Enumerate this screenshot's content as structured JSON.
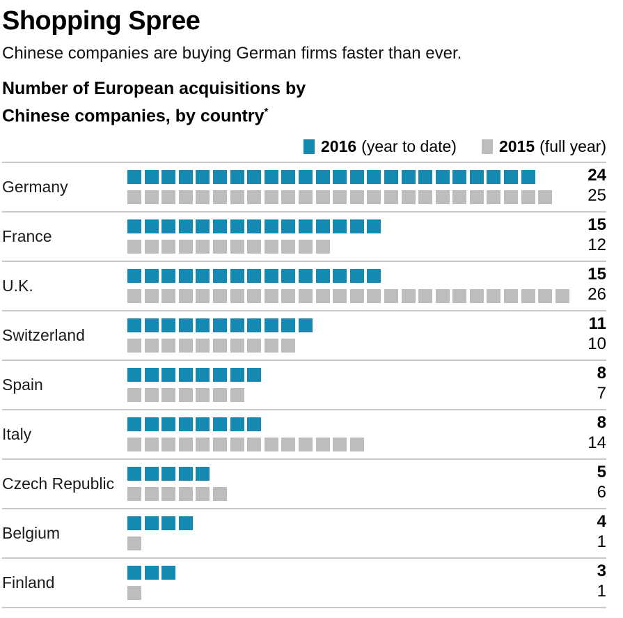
{
  "header": {
    "title": "Shopping Spree",
    "subtitle": "Chinese companies are buying German firms faster than ever.",
    "chart_heading_line1": "Number of European acquisitions by",
    "chart_heading_line2": "Chinese companies, by country",
    "footnote_marker": "*"
  },
  "legend": {
    "items": [
      {
        "year": "2016",
        "qualifier": "(year to date)",
        "color": "#1489b2"
      },
      {
        "year": "2015",
        "qualifier": "(full year)",
        "color": "#bdbdbd"
      }
    ]
  },
  "colors": {
    "accent_2016": "#1489b2",
    "accent_2015": "#bdbdbd",
    "divider": "#c9c9c9",
    "text": "#000000"
  },
  "chart_data": {
    "type": "bar",
    "variant": "waffle-unit-squares",
    "title": "Number of European acquisitions by Chinese companies, by country*",
    "categories": [
      "Germany",
      "France",
      "U.K.",
      "Switzerland",
      "Spain",
      "Italy",
      "Czech Republic",
      "Belgium",
      "Finland"
    ],
    "series": [
      {
        "name": "2016 (year to date)",
        "year": "2016",
        "color": "#1489b2",
        "values": [
          24,
          15,
          15,
          11,
          8,
          8,
          5,
          4,
          3
        ]
      },
      {
        "name": "2015 (full year)",
        "year": "2015",
        "color": "#bdbdbd",
        "values": [
          25,
          12,
          26,
          10,
          7,
          14,
          6,
          1,
          1
        ]
      }
    ],
    "value_labels_shown": true,
    "legend_position": "top-right",
    "grid": false,
    "xlabel": "",
    "ylabel": ""
  }
}
